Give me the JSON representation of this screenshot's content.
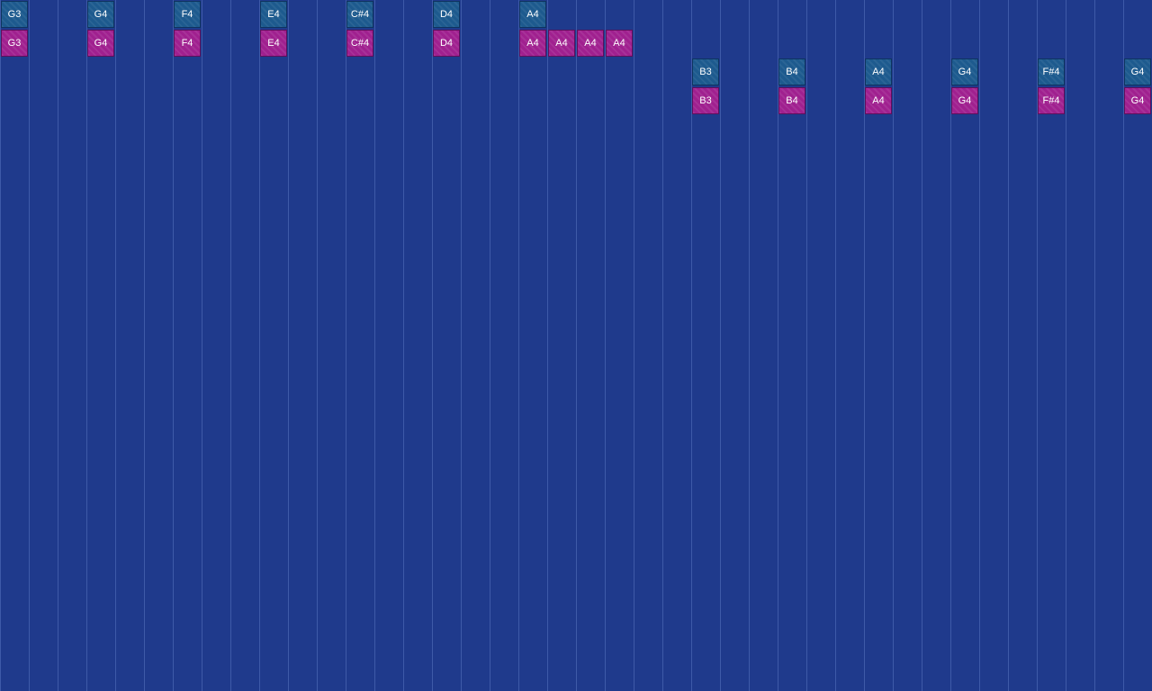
{
  "colors": {
    "background": "#1f3a8c",
    "gridline": "#5a78c8",
    "reference_note": "#1d5a8e",
    "played_note": "#a0208f"
  },
  "reference_notes": [
    {
      "label": "G3",
      "column": 0,
      "row": 0
    },
    {
      "label": "G4",
      "column": 3,
      "row": 0
    },
    {
      "label": "F4",
      "column": 6,
      "row": 0
    },
    {
      "label": "E4",
      "column": 9,
      "row": 0
    },
    {
      "label": "C#4",
      "column": 12,
      "row": 0
    },
    {
      "label": "D4",
      "column": 15,
      "row": 0
    },
    {
      "label": "A4",
      "column": 18,
      "row": 0
    },
    {
      "label": "B3",
      "column": 24,
      "row": 2
    },
    {
      "label": "B4",
      "column": 27,
      "row": 2
    },
    {
      "label": "A4",
      "column": 30,
      "row": 2
    },
    {
      "label": "G4",
      "column": 33,
      "row": 2
    },
    {
      "label": "F#4",
      "column": 36,
      "row": 2
    },
    {
      "label": "G4",
      "column": 39,
      "row": 2
    }
  ],
  "played_notes": [
    {
      "label": "G3",
      "column": 0,
      "row": 1
    },
    {
      "label": "G4",
      "column": 3,
      "row": 1
    },
    {
      "label": "F4",
      "column": 6,
      "row": 1
    },
    {
      "label": "E4",
      "column": 9,
      "row": 1
    },
    {
      "label": "C#4",
      "column": 12,
      "row": 1
    },
    {
      "label": "D4",
      "column": 15,
      "row": 1
    },
    {
      "label": "A4",
      "column": 18,
      "row": 1
    },
    {
      "label": "A4",
      "column": 19,
      "row": 1
    },
    {
      "label": "A4",
      "column": 20,
      "row": 1
    },
    {
      "label": "A4",
      "column": 21,
      "row": 1
    },
    {
      "label": "B3",
      "column": 24,
      "row": 3
    },
    {
      "label": "B4",
      "column": 27,
      "row": 3
    },
    {
      "label": "A4",
      "column": 30,
      "row": 3
    },
    {
      "label": "G4",
      "column": 33,
      "row": 3
    },
    {
      "label": "F#4",
      "column": 36,
      "row": 3
    },
    {
      "label": "G4",
      "column": 39,
      "row": 3
    }
  ]
}
